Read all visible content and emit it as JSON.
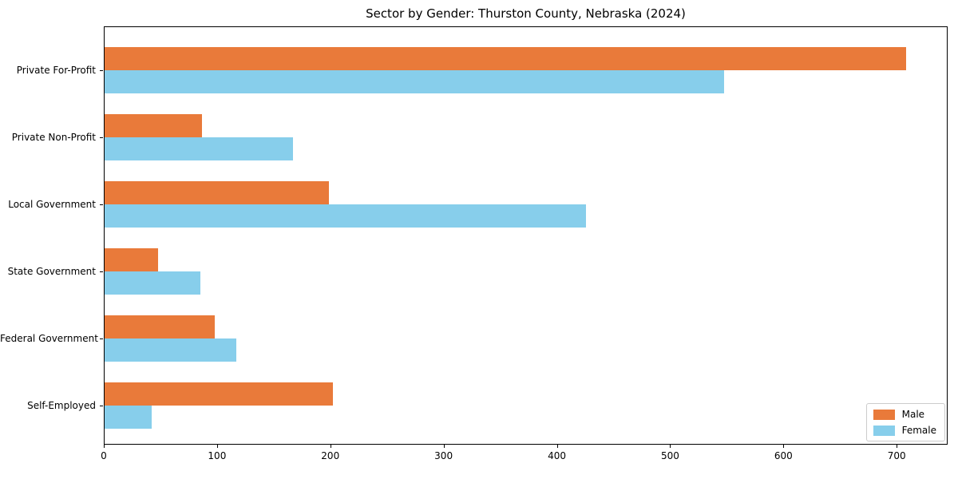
{
  "chart_data": {
    "type": "bar",
    "orientation": "horizontal",
    "title": "Sector by Gender: Thurston County, Nebraska (2024)",
    "categories": [
      "Private For-Profit",
      "Private Non-Profit",
      "Local Government",
      "State Government",
      "Federal Government",
      "Self-Employed"
    ],
    "series": [
      {
        "name": "Male",
        "color": "#e97a3a",
        "values": [
          708,
          87,
          199,
          48,
          98,
          202
        ]
      },
      {
        "name": "Female",
        "color": "#87ceeb",
        "values": [
          548,
          167,
          426,
          85,
          117,
          42
        ]
      }
    ],
    "xlabel": "",
    "ylabel": "",
    "xlim": [
      0,
      745
    ],
    "xticks": [
      0,
      100,
      200,
      300,
      400,
      500,
      600,
      700
    ],
    "grid": false,
    "legend": {
      "position": "lower right"
    }
  },
  "colors": {
    "spine": "#000000",
    "text": "#000000",
    "legend_border": "#cccccc",
    "background": "#ffffff"
  }
}
